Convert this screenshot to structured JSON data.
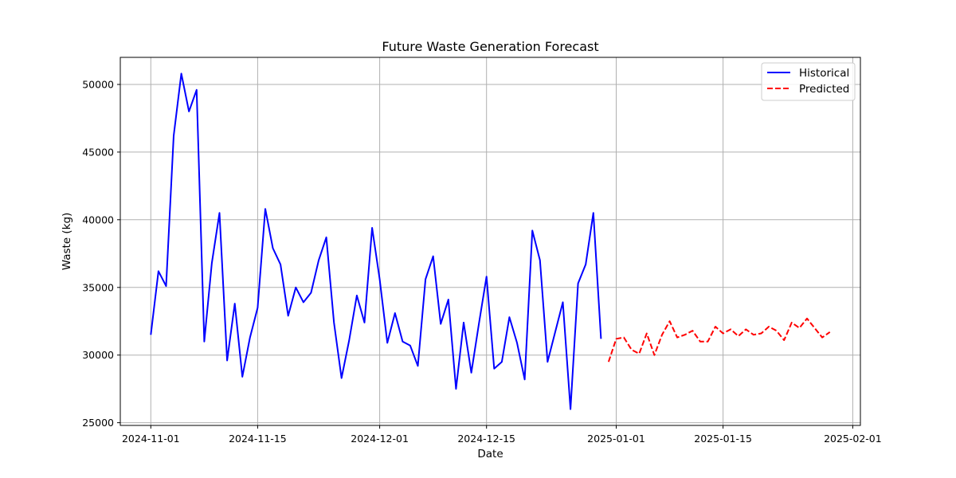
{
  "chart_data": {
    "type": "line",
    "title": "Future Waste Generation Forecast",
    "xlabel": "Date",
    "ylabel": "Waste (kg)",
    "xlim": [
      "2024-10-28",
      "2025-02-02"
    ],
    "ylim": [
      24800,
      52000
    ],
    "x_ticks": [
      "2024-11-01",
      "2024-11-15",
      "2024-12-01",
      "2024-12-15",
      "2025-01-01",
      "2025-01-15",
      "2025-02-01"
    ],
    "y_ticks": [
      25000,
      30000,
      35000,
      40000,
      45000,
      50000
    ],
    "grid": true,
    "legend_position": "top-right",
    "series": [
      {
        "name": "Historical",
        "color": "#0000ff",
        "style": "solid",
        "points": [
          [
            "2024-11-01",
            31500
          ],
          [
            "2024-11-02",
            36200
          ],
          [
            "2024-11-03",
            35100
          ],
          [
            "2024-11-04",
            46200
          ],
          [
            "2024-11-05",
            50800
          ],
          [
            "2024-11-06",
            48000
          ],
          [
            "2024-11-07",
            49600
          ],
          [
            "2024-11-08",
            31000
          ],
          [
            "2024-11-09",
            36800
          ],
          [
            "2024-11-10",
            40500
          ],
          [
            "2024-11-11",
            29600
          ],
          [
            "2024-11-12",
            33800
          ],
          [
            "2024-11-13",
            28400
          ],
          [
            "2024-11-14",
            31300
          ],
          [
            "2024-11-15",
            33500
          ],
          [
            "2024-11-16",
            40800
          ],
          [
            "2024-11-17",
            37900
          ],
          [
            "2024-11-18",
            36700
          ],
          [
            "2024-11-19",
            32900
          ],
          [
            "2024-11-20",
            35000
          ],
          [
            "2024-11-21",
            33900
          ],
          [
            "2024-11-22",
            34600
          ],
          [
            "2024-11-23",
            37000
          ],
          [
            "2024-11-24",
            38700
          ],
          [
            "2024-11-25",
            32400
          ],
          [
            "2024-11-26",
            28300
          ],
          [
            "2024-11-27",
            31100
          ],
          [
            "2024-11-28",
            34400
          ],
          [
            "2024-11-29",
            32400
          ],
          [
            "2024-11-30",
            39400
          ],
          [
            "2024-12-01",
            35600
          ],
          [
            "2024-12-02",
            30900
          ],
          [
            "2024-12-03",
            33100
          ],
          [
            "2024-12-04",
            31000
          ],
          [
            "2024-12-05",
            30700
          ],
          [
            "2024-12-06",
            29200
          ],
          [
            "2024-12-07",
            35600
          ],
          [
            "2024-12-08",
            37300
          ],
          [
            "2024-12-09",
            32300
          ],
          [
            "2024-12-10",
            34100
          ],
          [
            "2024-12-11",
            27500
          ],
          [
            "2024-12-12",
            32400
          ],
          [
            "2024-12-13",
            28700
          ],
          [
            "2024-12-14",
            32300
          ],
          [
            "2024-12-15",
            35800
          ],
          [
            "2024-12-16",
            29000
          ],
          [
            "2024-12-17",
            29500
          ],
          [
            "2024-12-18",
            32800
          ],
          [
            "2024-12-19",
            30900
          ],
          [
            "2024-12-20",
            28200
          ],
          [
            "2024-12-21",
            39200
          ],
          [
            "2024-12-22",
            37000
          ],
          [
            "2024-12-23",
            29500
          ],
          [
            "2024-12-24",
            31700
          ],
          [
            "2024-12-25",
            33900
          ],
          [
            "2024-12-26",
            26000
          ],
          [
            "2024-12-27",
            35300
          ],
          [
            "2024-12-28",
            36700
          ],
          [
            "2024-12-29",
            40500
          ],
          [
            "2024-12-30",
            31200
          ]
        ]
      },
      {
        "name": "Predicted",
        "color": "#ff0000",
        "style": "dashed",
        "points": [
          [
            "2024-12-31",
            29500
          ],
          [
            "2025-01-01",
            31200
          ],
          [
            "2025-01-02",
            31300
          ],
          [
            "2025-01-03",
            30400
          ],
          [
            "2025-01-04",
            30100
          ],
          [
            "2025-01-05",
            31600
          ],
          [
            "2025-01-06",
            30000
          ],
          [
            "2025-01-07",
            31500
          ],
          [
            "2025-01-08",
            32500
          ],
          [
            "2025-01-09",
            31300
          ],
          [
            "2025-01-10",
            31500
          ],
          [
            "2025-01-11",
            31800
          ],
          [
            "2025-01-12",
            31000
          ],
          [
            "2025-01-13",
            31000
          ],
          [
            "2025-01-14",
            32100
          ],
          [
            "2025-01-15",
            31600
          ],
          [
            "2025-01-16",
            31900
          ],
          [
            "2025-01-17",
            31400
          ],
          [
            "2025-01-18",
            31900
          ],
          [
            "2025-01-19",
            31500
          ],
          [
            "2025-01-20",
            31600
          ],
          [
            "2025-01-21",
            32100
          ],
          [
            "2025-01-22",
            31800
          ],
          [
            "2025-01-23",
            31100
          ],
          [
            "2025-01-24",
            32400
          ],
          [
            "2025-01-25",
            32000
          ],
          [
            "2025-01-26",
            32700
          ],
          [
            "2025-01-27",
            32000
          ],
          [
            "2025-01-28",
            31300
          ],
          [
            "2025-01-29",
            31700
          ]
        ]
      }
    ]
  }
}
